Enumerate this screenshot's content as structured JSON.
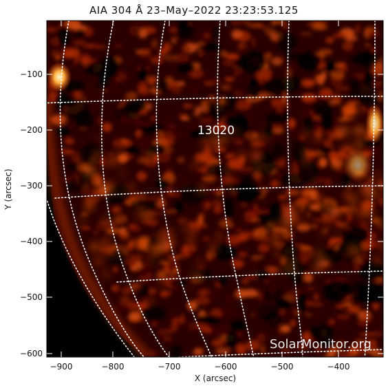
{
  "title": "AIA 304 Å 23–May–2022 23:23:53.125",
  "xaxis": {
    "label": "X (arcsec)",
    "ticks": [
      "−900",
      "−800",
      "−700",
      "−600",
      "−500",
      "−400"
    ]
  },
  "yaxis": {
    "label": "Y (arcsec)",
    "ticks": [
      "−100",
      "−200",
      "−300",
      "−400",
      "−500",
      "−600"
    ]
  },
  "annotation": {
    "region_label": "13020"
  },
  "watermark": "SolarMonitor.org",
  "colors": {
    "background": "#000000",
    "plasma_dark": "#3a0000",
    "plasma_mid": "#8a1a00",
    "plasma_bright": "#ff6a10",
    "plasma_hot": "#fff2c0",
    "grid": "#ffffff"
  }
}
